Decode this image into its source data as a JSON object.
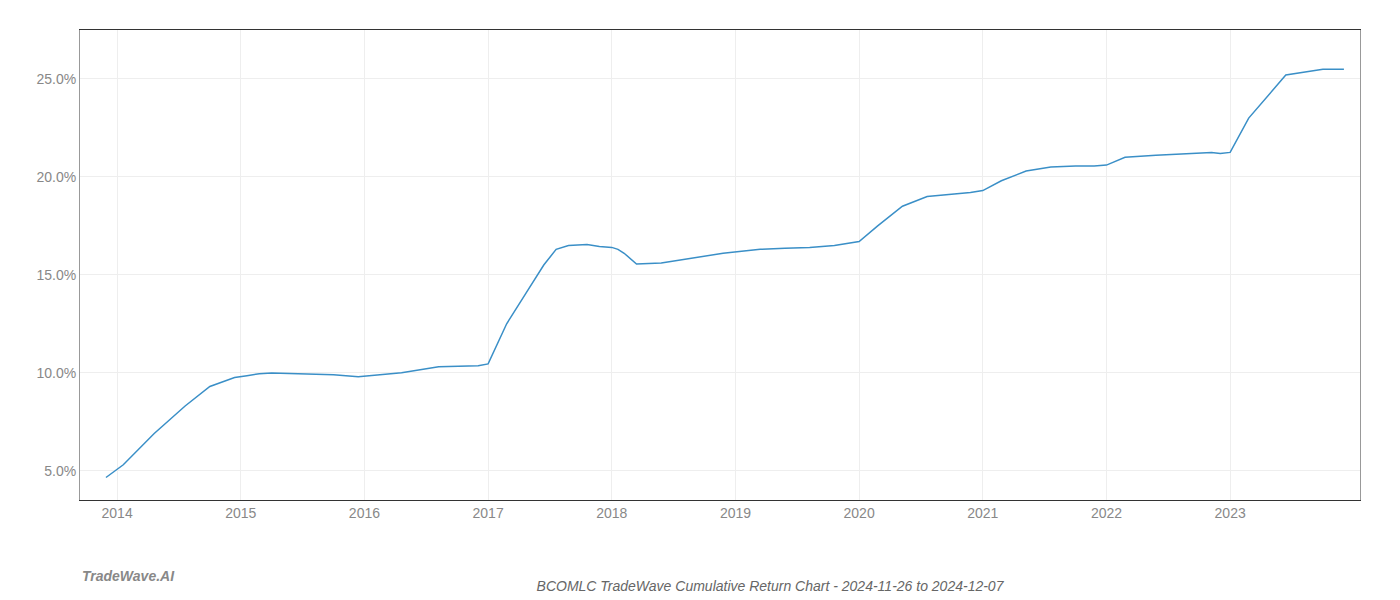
{
  "chart_data": {
    "type": "line",
    "title": "BCOMLC TradeWave Cumulative Return Chart - 2024-11-26 to 2024-12-07",
    "annotations": [
      "TradeWave.AI"
    ],
    "x": [
      2013.91,
      2014.05,
      2014.3,
      2014.55,
      2014.75,
      2014.95,
      2015.05,
      2015.15,
      2015.25,
      2015.5,
      2015.75,
      2015.95,
      2016.05,
      2016.3,
      2016.6,
      2016.85,
      2016.92,
      2017.0,
      2017.15,
      2017.3,
      2017.45,
      2017.55,
      2017.65,
      2017.8,
      2017.9,
      2018.0,
      2018.05,
      2018.1,
      2018.2,
      2018.4,
      2018.65,
      2018.9,
      2019.05,
      2019.2,
      2019.4,
      2019.6,
      2019.8,
      2020.0,
      2020.15,
      2020.35,
      2020.55,
      2020.75,
      2020.9,
      2021.0,
      2021.15,
      2021.35,
      2021.55,
      2021.75,
      2021.9,
      2022.0,
      2022.15,
      2022.4,
      2022.65,
      2022.85,
      2022.92,
      2023.0,
      2023.15,
      2023.45,
      2023.75,
      2023.92
    ],
    "values": [
      4.65,
      5.3,
      6.9,
      8.3,
      9.3,
      9.75,
      9.85,
      9.95,
      9.98,
      9.95,
      9.9,
      9.8,
      9.85,
      10.0,
      10.3,
      10.35,
      10.35,
      10.45,
      12.5,
      14.0,
      15.5,
      16.3,
      16.5,
      16.55,
      16.45,
      16.4,
      16.3,
      16.1,
      15.55,
      15.6,
      15.85,
      16.1,
      16.2,
      16.3,
      16.35,
      16.4,
      16.5,
      16.7,
      17.5,
      18.5,
      19.0,
      19.1,
      19.2,
      19.3,
      19.8,
      20.3,
      20.5,
      20.55,
      20.55,
      20.6,
      21.0,
      21.1,
      21.2,
      21.25,
      21.2,
      21.25,
      23.0,
      25.2,
      25.5,
      25.5
    ],
    "color": "#3a8fc7",
    "xlim": [
      2013.7,
      2024.05
    ],
    "xticks": [
      2014,
      2015,
      2016,
      2017,
      2018,
      2019,
      2020,
      2021,
      2022,
      2023
    ],
    "ylim": [
      3.5,
      27.5
    ],
    "yticks": [
      {
        "value": 5.0,
        "label": "5.0%"
      },
      {
        "value": 10.0,
        "label": "10.0%"
      },
      {
        "value": 15.0,
        "label": "15.0%"
      },
      {
        "value": 20.0,
        "label": "20.0%"
      },
      {
        "value": 25.0,
        "label": "25.0%"
      }
    ],
    "grid": true
  }
}
